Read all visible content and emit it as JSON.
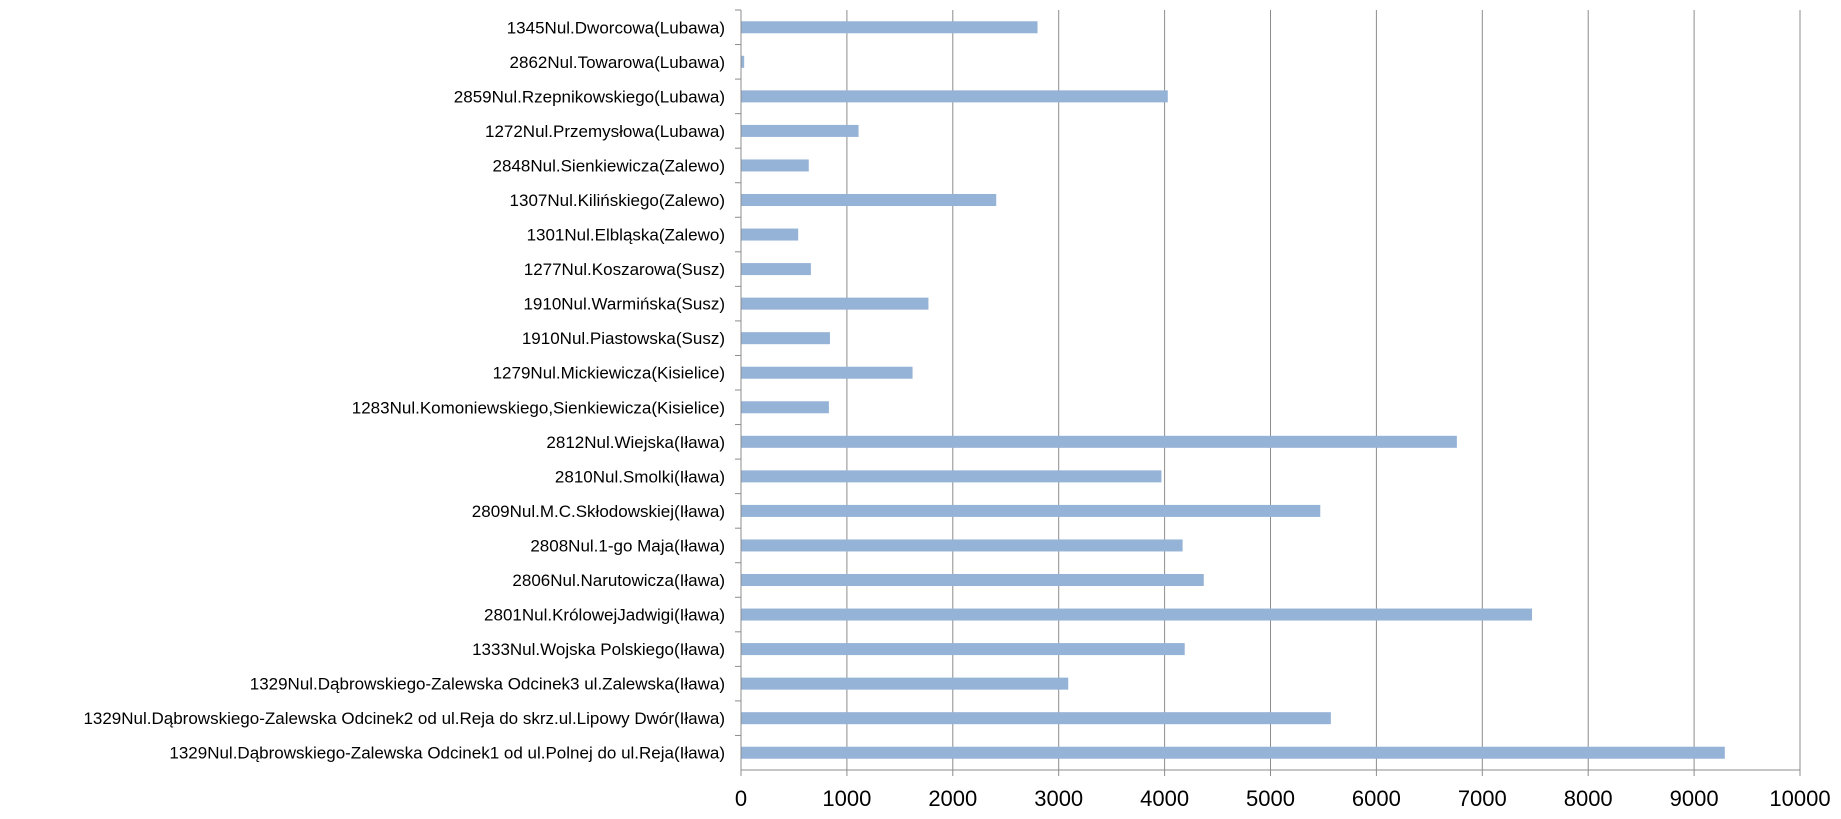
{
  "chart_data": {
    "type": "bar",
    "orientation": "horizontal",
    "title": "",
    "xlabel": "",
    "ylabel": "",
    "xlim": [
      0,
      10000
    ],
    "xticks": [
      "0",
      "1000",
      "2000",
      "3000",
      "4000",
      "5000",
      "6000",
      "7000",
      "8000",
      "9000",
      "10000"
    ],
    "grid": "vertical",
    "legend": "none",
    "bar_color": "#95B3D7",
    "categories": [
      "1345Nul.Dworcowa(Lubawa)",
      "2862Nul.Towarowa(Lubawa)",
      "2859Nul.Rzepnikowskiego(Lubawa)",
      "1272Nul.Przemysłowa(Lubawa)",
      "2848Nul.Sienkiewicza(Zalewo)",
      "1307Nul.Kilińskiego(Zalewo)",
      "1301Nul.Elbląska(Zalewo)",
      "1277Nul.Koszarowa(Susz)",
      "1910Nul.Warmińska(Susz)",
      "1910Nul.Piastowska(Susz)",
      "1279Nul.Mickiewicza(Kisielice)",
      "1283Nul.Komoniewskiego,Sienkiewicza(Kisielice)",
      "2812Nul.Wiejska(Iława)",
      "2810Nul.Smolki(Iława)",
      "2809Nul.M.C.Skłodowskiej(Iława)",
      "2808Nul.1-go Maja(Iława)",
      "2806Nul.Narutowicza(Iława)",
      "2801Nul.KrólowejJadwigi(Iława)",
      "1333Nul.Wojska Polskiego(Iława)",
      "1329Nul.Dąbrowskiego-Zalewska Odcinek3 ul.Zalewska(Iława)",
      "1329Nul.Dąbrowskiego-Zalewska Odcinek2 od ul.Reja do skrz.ul.Lipowy Dwór(Iława)",
      "1329Nul.Dąbrowskiego-Zalewska Odcinek1 od ul.Polnej do ul.Reja(Iława)"
    ],
    "values": [
      2800,
      30,
      4030,
      1110,
      640,
      2410,
      540,
      660,
      1770,
      840,
      1620,
      830,
      6760,
      3970,
      5470,
      4170,
      4370,
      7470,
      4190,
      3090,
      5570,
      9290
    ]
  }
}
